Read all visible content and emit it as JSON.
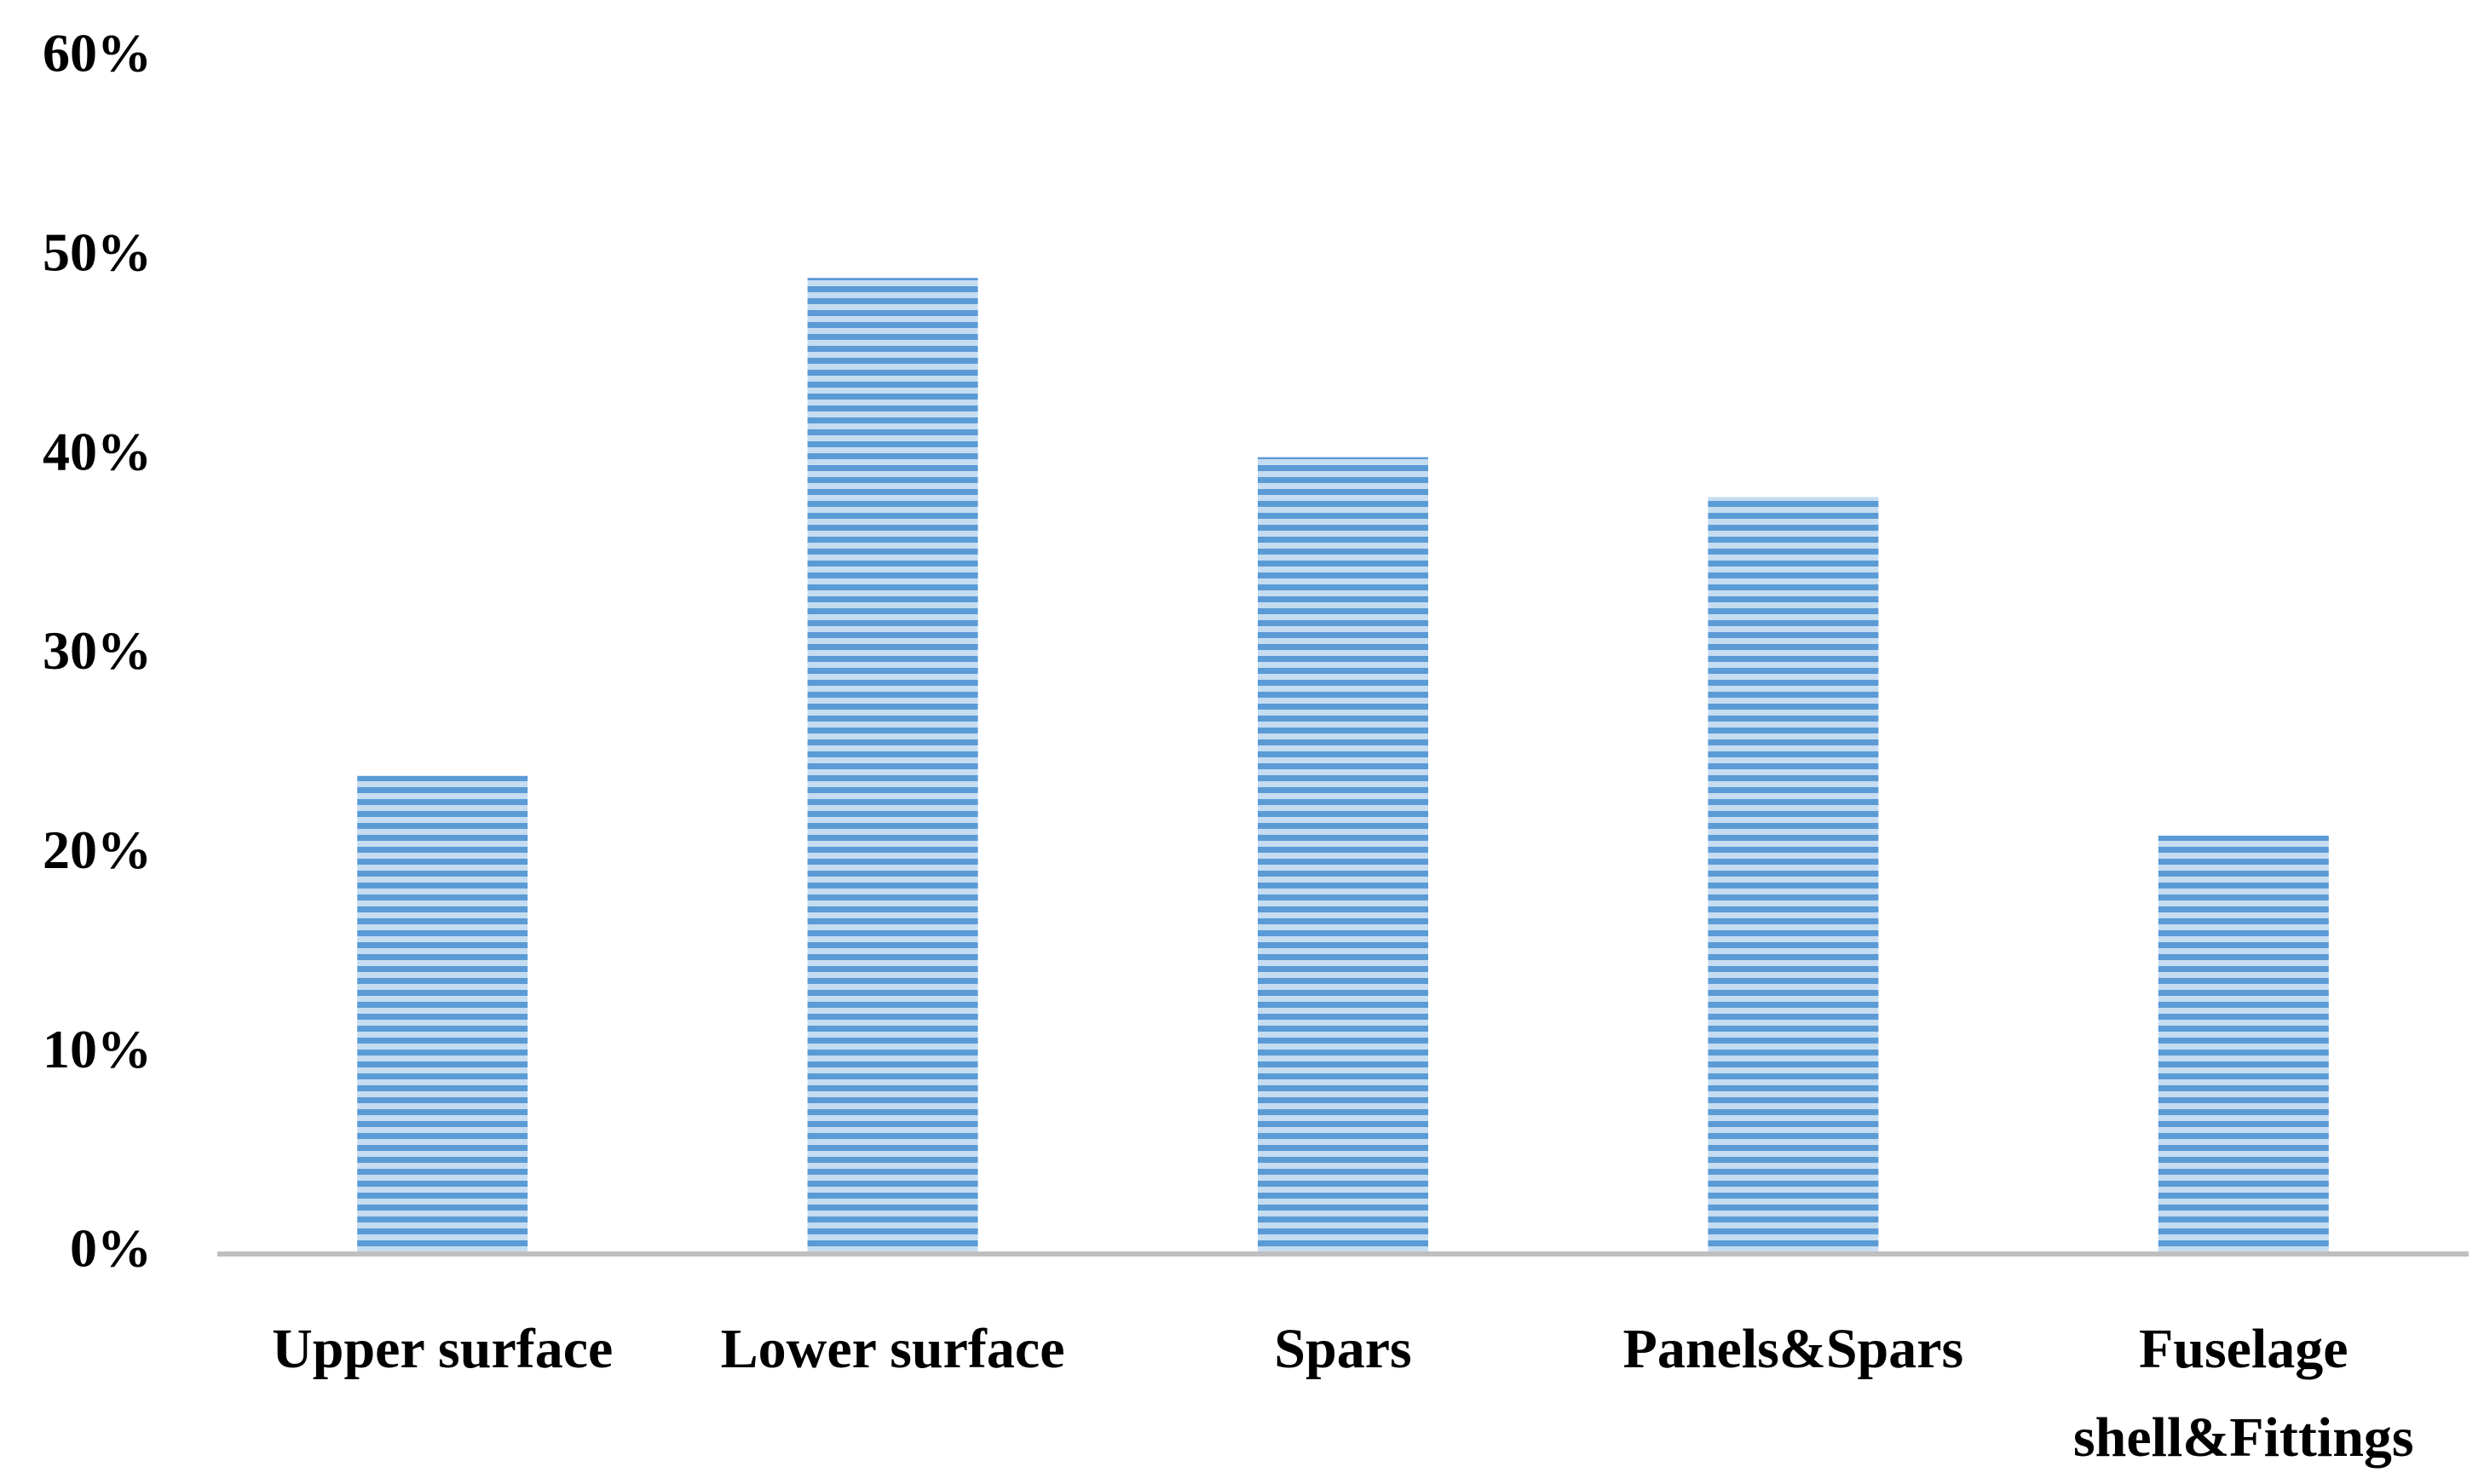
{
  "chart_data": {
    "type": "bar",
    "categories": [
      "Upper surface",
      "Lower surface",
      "Spars",
      "Panels&Spars",
      "Fuselage shell&Fittings"
    ],
    "values": [
      24,
      49,
      40,
      38,
      21
    ],
    "color": "#5b9bd5",
    "ylim": [
      0,
      60
    ],
    "yticks": [
      {
        "value": 0,
        "label": "0%"
      },
      {
        "value": 10,
        "label": "10%"
      },
      {
        "value": 20,
        "label": "20%"
      },
      {
        "value": 30,
        "label": "30%"
      },
      {
        "value": 40,
        "label": "40%"
      },
      {
        "value": 50,
        "label": "50%"
      },
      {
        "value": 60,
        "label": "60%"
      }
    ],
    "grid": false
  }
}
